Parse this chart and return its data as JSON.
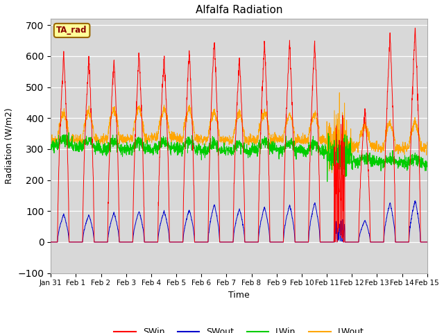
{
  "title": "Alfalfa Radiation",
  "xlabel": "Time",
  "ylabel": "Radiation (W/m2)",
  "ylim": [
    -100,
    720
  ],
  "yticks": [
    -100,
    0,
    100,
    200,
    300,
    400,
    500,
    600,
    700
  ],
  "x_tick_labels": [
    "Jan 31",
    "Feb 1",
    "Feb 2",
    "Feb 3",
    "Feb 4",
    "Feb 5",
    "Feb 6",
    "Feb 7",
    "Feb 8",
    "Feb 9",
    "Feb 10",
    "Feb 11",
    "Feb 12",
    "Feb 13",
    "Feb 14",
    "Feb 15"
  ],
  "bg_color": "#d8d8d8",
  "fig_color": "#ffffff",
  "colors": {
    "SWin": "#ff0000",
    "SWout": "#0000cc",
    "LWin": "#00cc00",
    "LWout": "#ffa500"
  },
  "tag_label": "TA_rad",
  "tag_bg": "#ffff99",
  "tag_border": "#996600",
  "swin_peaks": [
    610,
    595,
    595,
    608,
    600,
    620,
    658,
    600,
    643,
    648,
    647,
    450,
    430,
    665,
    688,
    688
  ],
  "swout_peaks": [
    90,
    88,
    95,
    100,
    100,
    105,
    122,
    108,
    113,
    120,
    128,
    78,
    70,
    128,
    135,
    135
  ],
  "lwin_night": [
    310,
    305,
    298,
    302,
    300,
    298,
    295,
    292,
    300,
    298,
    295,
    280,
    260,
    255,
    255,
    250
  ],
  "lwout_night": [
    330,
    330,
    332,
    335,
    338,
    335,
    330,
    330,
    332,
    330,
    328,
    310,
    310,
    305,
    305,
    305
  ],
  "lwin_day_bump": [
    25,
    25,
    30,
    28,
    28,
    30,
    28,
    25,
    28,
    25,
    25,
    20,
    15,
    15,
    15,
    15
  ],
  "lwout_day_bump": [
    90,
    95,
    100,
    100,
    95,
    100,
    90,
    90,
    90,
    85,
    85,
    70,
    70,
    80,
    85,
    90
  ]
}
